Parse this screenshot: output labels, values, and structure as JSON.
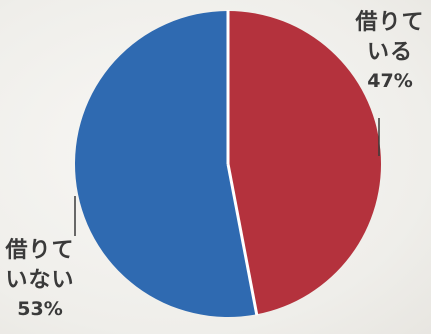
{
  "chart_data": {
    "type": "pie",
    "title": "",
    "slices": [
      {
        "label": "借りている",
        "value": 47,
        "value_text": "47%",
        "label_lines": [
          "借りて",
          "いる"
        ],
        "color": "#b4323d"
      },
      {
        "label": "借りていない",
        "value": 53,
        "value_text": "53%",
        "label_lines": [
          "借りて",
          "いない"
        ],
        "color": "#2f6ab1"
      }
    ],
    "start_angle_deg": 0,
    "direction": "clockwise",
    "separator_color": "#ffffff",
    "leader_line_color": "#3a3a3a"
  }
}
